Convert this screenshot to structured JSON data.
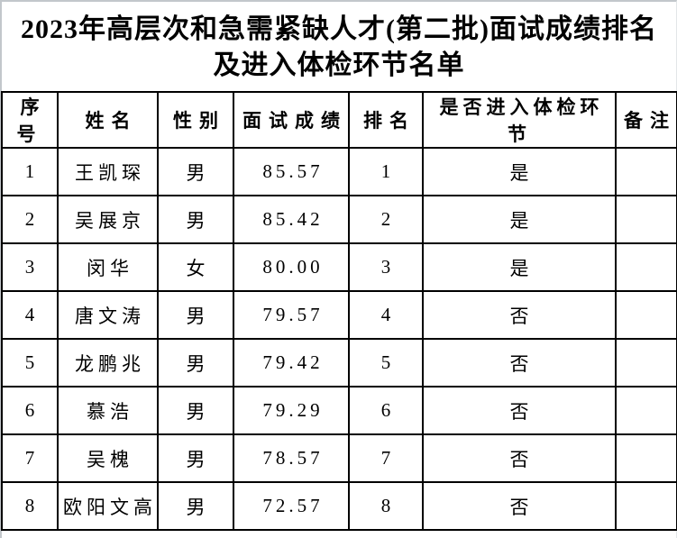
{
  "page": {
    "title": "2023年高层次和急需紧缺人才(第二批)面试成绩排名\n及进入体检环节名单"
  },
  "colors": {
    "background": "#ffffff",
    "text": "#000000",
    "table_border": "#000000",
    "frame_border": "#c2c7cb"
  },
  "table": {
    "columns": [
      "序号",
      "姓名",
      "性别",
      "面试成绩",
      "排名",
      "是否进入体检环节",
      "备注"
    ],
    "rows": [
      {
        "no": "1",
        "name": "王凯琛",
        "gender": "男",
        "score": "85.57",
        "rank": "1",
        "medical": "是",
        "remark": ""
      },
      {
        "no": "2",
        "name": "吴展京",
        "gender": "男",
        "score": "85.42",
        "rank": "2",
        "medical": "是",
        "remark": ""
      },
      {
        "no": "3",
        "name": "闵华",
        "gender": "女",
        "score": "80.00",
        "rank": "3",
        "medical": "是",
        "remark": ""
      },
      {
        "no": "4",
        "name": "唐文涛",
        "gender": "男",
        "score": "79.57",
        "rank": "4",
        "medical": "否",
        "remark": ""
      },
      {
        "no": "5",
        "name": "龙鹏兆",
        "gender": "男",
        "score": "79.42",
        "rank": "5",
        "medical": "否",
        "remark": ""
      },
      {
        "no": "6",
        "name": "慕浩",
        "gender": "男",
        "score": "79.29",
        "rank": "6",
        "medical": "否",
        "remark": ""
      },
      {
        "no": "7",
        "name": "吴槐",
        "gender": "男",
        "score": "78.57",
        "rank": "7",
        "medical": "否",
        "remark": ""
      },
      {
        "no": "8",
        "name": "欧阳文高",
        "gender": "男",
        "score": "72.57",
        "rank": "8",
        "medical": "否",
        "remark": ""
      }
    ]
  }
}
